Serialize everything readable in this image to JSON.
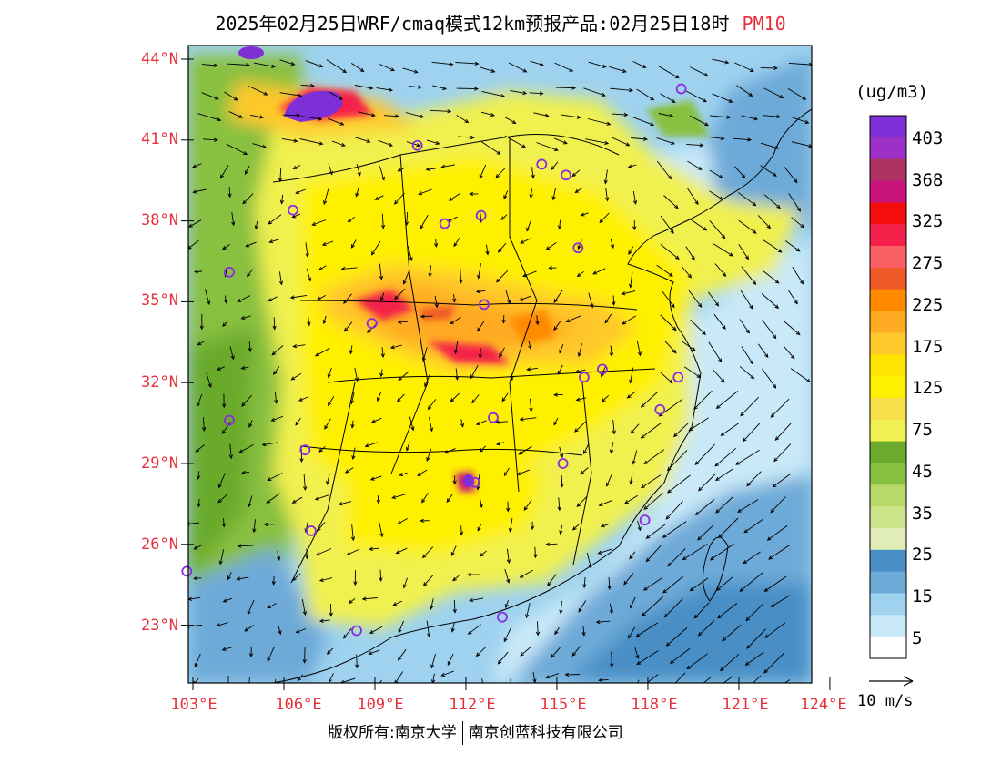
{
  "title": {
    "main": "2025年02月25日WRF/cmaq模式12km预报产品:02月25日18时",
    "variable": "PM10"
  },
  "lat_labels": [
    "44°N",
    "41°N",
    "38°N",
    "35°N",
    "32°N",
    "29°N",
    "26°N",
    "23°N"
  ],
  "lon_labels": [
    "103°E",
    "106°E",
    "109°E",
    "112°E",
    "115°E",
    "118°E",
    "121°E",
    "124°E"
  ],
  "colorbar": {
    "unit": "(ug/m3)",
    "labels": [
      "403",
      "368",
      "325",
      "275",
      "225",
      "175",
      "125",
      "75",
      "45",
      "35",
      "25",
      "15",
      "5"
    ],
    "colors": [
      "#7e2fd6",
      "#9b2fc6",
      "#ad3462",
      "#c8147c",
      "#f50d0d",
      "#f4204a",
      "#fa5f65",
      "#f05828",
      "#ff8a00",
      "#ffaa22",
      "#ffc82c",
      "#ffe400",
      "#fff000",
      "#f7e04a",
      "#f0f050",
      "#6aaa2c",
      "#88c040",
      "#b8d86a",
      "#cce38a",
      "#e0edb8",
      "#4a8fc6",
      "#6eaad8",
      "#9ed2ef",
      "#c9e9f8",
      "#ffffff"
    ]
  },
  "vector_label": "10 m/s",
  "footer": {
    "left": "版权所有:南京大学",
    "right": "南京创蓝科技有限公司"
  },
  "stations": [
    {
      "lon": 104.2,
      "lat": 36.1
    },
    {
      "lon": 104.2,
      "lat": 30.6
    },
    {
      "lon": 106.3,
      "lat": 38.4
    },
    {
      "lon": 106.7,
      "lat": 29.5
    },
    {
      "lon": 106.9,
      "lat": 26.5
    },
    {
      "lon": 108.4,
      "lat": 22.8
    },
    {
      "lon": 102.8,
      "lat": 25.0
    },
    {
      "lon": 108.9,
      "lat": 34.2
    },
    {
      "lon": 110.4,
      "lat": 40.8
    },
    {
      "lon": 111.3,
      "lat": 37.9
    },
    {
      "lon": 112.5,
      "lat": 38.2
    },
    {
      "lon": 112.6,
      "lat": 34.9
    },
    {
      "lon": 112.9,
      "lat": 30.7
    },
    {
      "lon": 112.3,
      "lat": 28.3
    },
    {
      "lon": 113.2,
      "lat": 23.3
    },
    {
      "lon": 114.5,
      "lat": 40.1
    },
    {
      "lon": 115.3,
      "lat": 39.7
    },
    {
      "lon": 115.7,
      "lat": 37.0
    },
    {
      "lon": 115.9,
      "lat": 32.2
    },
    {
      "lon": 116.5,
      "lat": 32.5
    },
    {
      "lon": 115.2,
      "lat": 29.0
    },
    {
      "lon": 118.4,
      "lat": 31.0
    },
    {
      "lon": 119.0,
      "lat": 32.2
    },
    {
      "lon": 117.9,
      "lat": 26.9
    },
    {
      "lon": 119.1,
      "lat": 42.9
    }
  ]
}
